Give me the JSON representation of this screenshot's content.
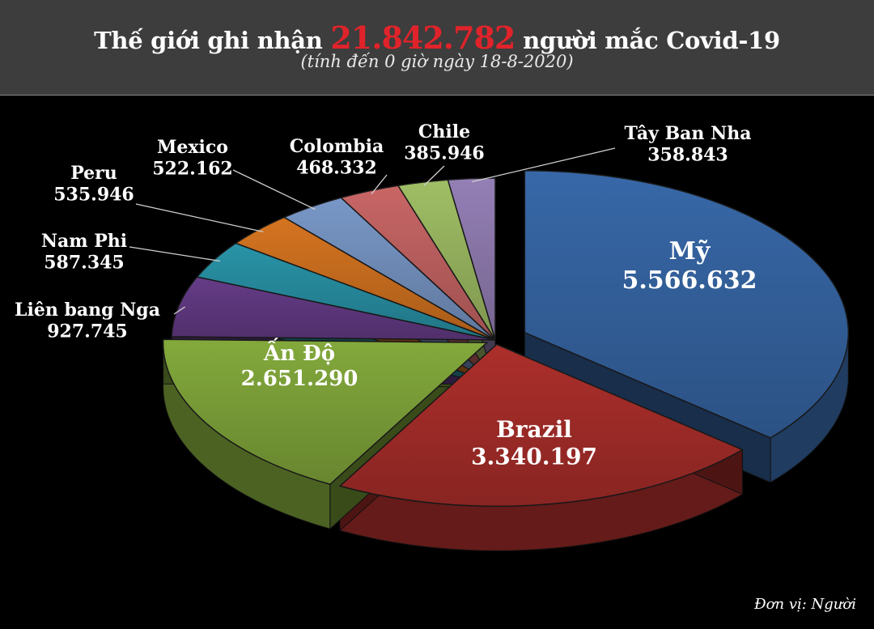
{
  "header": {
    "title_prefix": "Thế giới ghi nhận",
    "total": "21.842.782",
    "title_suffix": "người mắc Covid-19",
    "subtitle": "(tính đến 0 giờ ngày 18-8-2020)"
  },
  "unit_note": "Đơn vị: Người",
  "chart_data": {
    "type": "pie",
    "style": "3d-exploded",
    "title": "Thế giới ghi nhận 21.842.782 người mắc Covid-19",
    "subtitle": "(tính đến 0 giờ ngày 18-8-2020)",
    "slices": [
      {
        "label": "Mỹ",
        "value": 5566632,
        "display": "5.566.632",
        "color": "#3a6db0"
      },
      {
        "label": "Brazil",
        "value": 3340197,
        "display": "3.340.197",
        "color": "#b5312d"
      },
      {
        "label": "Ấn Độ",
        "value": 2651290,
        "display": "2.651.290",
        "color": "#8ab23f"
      },
      {
        "label": "Liên bang Nga",
        "value": 927745,
        "display": "927.745",
        "color": "#6a3f8e"
      },
      {
        "label": "Nam Phi",
        "value": 587345,
        "display": "587.345",
        "color": "#2b9bb0"
      },
      {
        "label": "Peru",
        "value": 535946,
        "display": "535.946",
        "color": "#e07a22"
      },
      {
        "label": "Mexico",
        "value": 522162,
        "display": "522.162",
        "color": "#7f9fd1"
      },
      {
        "label": "Colombia",
        "value": 468332,
        "display": "468.332",
        "color": "#d36b6b"
      },
      {
        "label": "Chile",
        "value": 385946,
        "display": "385.946",
        "color": "#a8c86a"
      },
      {
        "label": "Tây Ban Nha",
        "value": 358843,
        "display": "358.843",
        "color": "#9c86bf"
      }
    ],
    "legend": "none"
  }
}
